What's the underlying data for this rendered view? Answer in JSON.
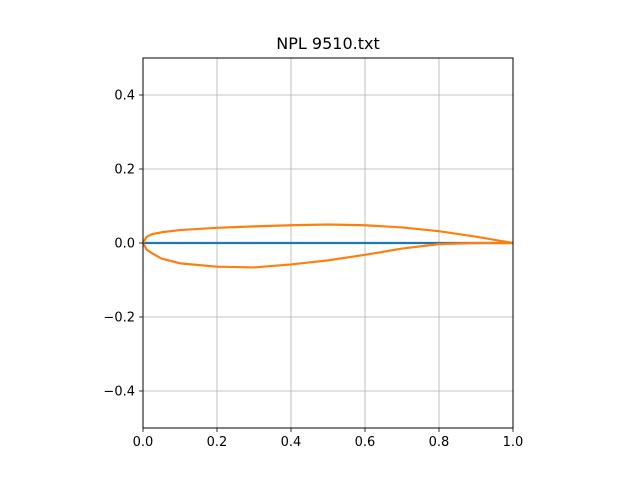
{
  "chart_data": {
    "type": "line",
    "title": "NPL 9510.txt",
    "xlabel": "",
    "ylabel": "",
    "xlim": [
      0.0,
      1.0
    ],
    "ylim": [
      -0.5,
      0.5
    ],
    "x_ticks": [
      0.0,
      0.2,
      0.4,
      0.6,
      0.8,
      1.0
    ],
    "x_tick_labels": [
      "0.0",
      "0.2",
      "0.4",
      "0.6",
      "0.8",
      "1.0"
    ],
    "y_ticks": [
      -0.4,
      -0.2,
      0.0,
      0.2,
      0.4
    ],
    "y_tick_labels": [
      "−0.4",
      "−0.2",
      "0.0",
      "0.2",
      "0.4"
    ],
    "grid": true,
    "legend": "none",
    "series": [
      {
        "color": "#1f77b4",
        "x": [
          0.0,
          1.0
        ],
        "y": [
          0.0,
          0.0
        ]
      },
      {
        "color": "#ff7f0e",
        "x": [
          1.0,
          0.9,
          0.8,
          0.7,
          0.6,
          0.5,
          0.4,
          0.3,
          0.2,
          0.1,
          0.05,
          0.025,
          0.01,
          0.0,
          0.01,
          0.025,
          0.05,
          0.1,
          0.2,
          0.3,
          0.4,
          0.5,
          0.6,
          0.7,
          0.8,
          0.9,
          1.0
        ],
        "y": [
          0.0,
          0.017,
          0.032,
          0.042,
          0.048,
          0.05,
          0.048,
          0.045,
          0.041,
          0.035,
          0.029,
          0.024,
          0.017,
          0.0,
          -0.018,
          -0.028,
          -0.042,
          -0.055,
          -0.064,
          -0.066,
          -0.058,
          -0.047,
          -0.032,
          -0.015,
          -0.003,
          0.0,
          0.0
        ]
      }
    ]
  }
}
